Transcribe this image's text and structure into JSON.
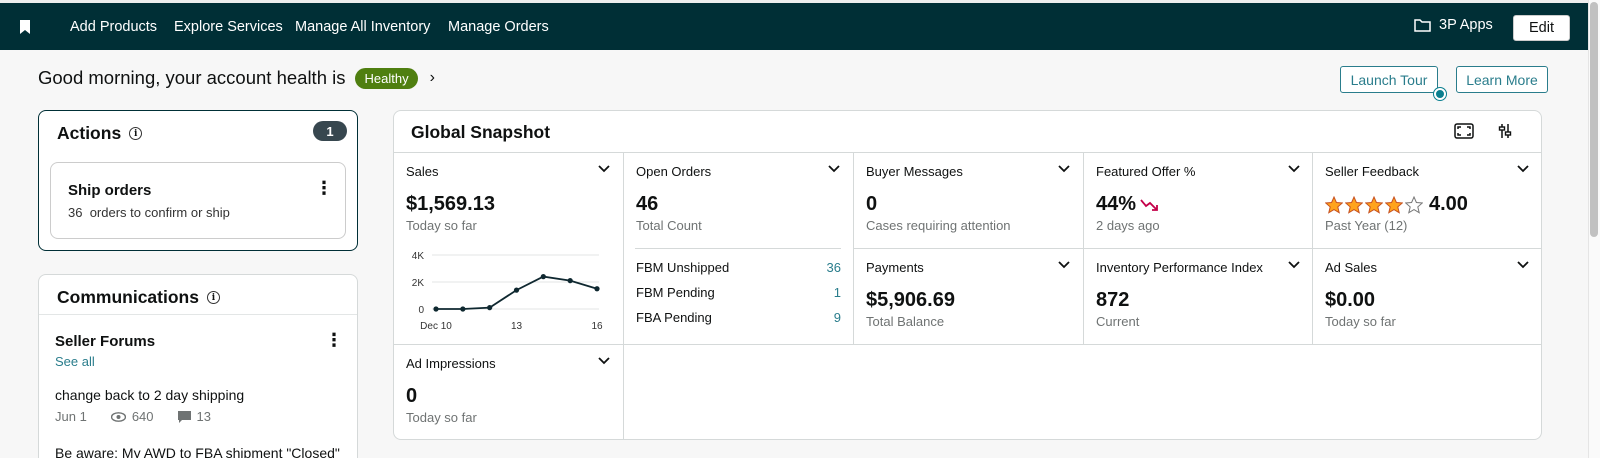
{
  "nav": {
    "links": [
      "Add Products",
      "Explore Services",
      "Manage All Inventory",
      "Manage Orders"
    ],
    "apps_label": "3P Apps",
    "edit_label": "Edit"
  },
  "header": {
    "greeting": "Good morning, your account health is",
    "health_status": "Healthy",
    "launch_tour": "Launch Tour",
    "learn_more": "Learn More"
  },
  "actions": {
    "title": "Actions",
    "count": "1",
    "ship_title": "Ship orders",
    "ship_count": "36",
    "ship_desc": "orders to confirm or ship"
  },
  "communications": {
    "title": "Communications",
    "forum_title": "Seller Forums",
    "see_all": "See all",
    "posts": [
      {
        "title": "change back to 2 day shipping",
        "date": "Jun 1",
        "views": "640",
        "comments": "13"
      },
      {
        "title": "Be aware: My AWD to FBA shipment \"Closed\""
      }
    ]
  },
  "snapshot": {
    "title": "Global Snapshot",
    "sales": {
      "label": "Sales",
      "value": "$1,569.13",
      "sub": "Today so far",
      "chart_data": {
        "type": "line",
        "x": [
          "Dec 10",
          "11",
          "12",
          "13",
          "14",
          "15",
          "16"
        ],
        "values": [
          0,
          0,
          100,
          1400,
          2400,
          2100,
          1500
        ],
        "xticks": [
          "Dec 10",
          "13",
          "16"
        ],
        "yticks": [
          "4K",
          "2K",
          "0"
        ],
        "ylim": [
          0,
          4000
        ]
      }
    },
    "open_orders": {
      "label": "Open Orders",
      "value": "46",
      "sub": "Total Count",
      "rows": [
        {
          "label": "FBM Unshipped",
          "value": "36"
        },
        {
          "label": "FBM Pending",
          "value": "1"
        },
        {
          "label": "FBA Pending",
          "value": "9"
        }
      ]
    },
    "buyer_messages": {
      "label": "Buyer Messages",
      "value": "0",
      "sub": "Cases requiring attention"
    },
    "featured_offer": {
      "label": "Featured Offer %",
      "value": "44%",
      "sub": "2 days ago",
      "trend_color": "#c40049"
    },
    "seller_feedback": {
      "label": "Seller Feedback",
      "value": "4.00",
      "sub": "Past Year (12)",
      "rating": 4,
      "max_rating": 5,
      "star_color": "#ffa41c"
    },
    "payments": {
      "label": "Payments",
      "value": "$5,906.69",
      "sub": "Total Balance"
    },
    "ipi": {
      "label": "Inventory Performance Index",
      "value": "872",
      "sub": "Current"
    },
    "ad_sales": {
      "label": "Ad Sales",
      "value": "$0.00",
      "sub": "Today so far"
    },
    "ad_impressions": {
      "label": "Ad Impressions",
      "value": "0",
      "sub": "Today so far"
    }
  },
  "colors": {
    "nav_bg": "#002f36",
    "healthy": "#4f7f10",
    "link": "#2a7d8c"
  }
}
